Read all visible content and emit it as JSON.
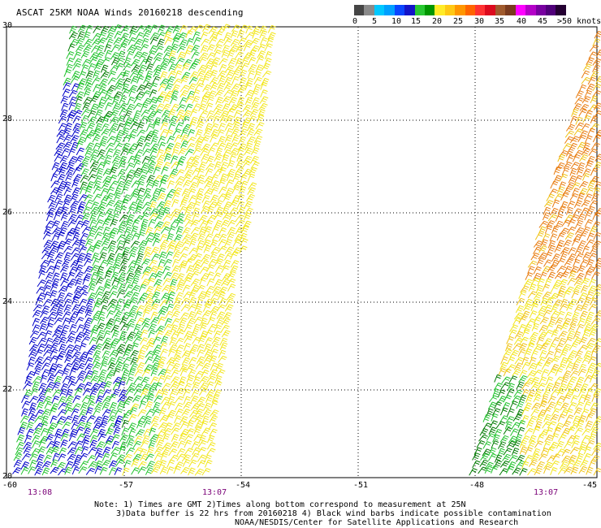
{
  "title": "ASCAT 25KM NOAA Winds 20160218 descending",
  "legend": {
    "colors": [
      "#454545",
      "#8a8a8a",
      "#00c8ff",
      "#00a0ff",
      "#0a46ff",
      "#1414c8",
      "#28c832",
      "#009600",
      "#ffeb28",
      "#ffc814",
      "#ff9600",
      "#ff6400",
      "#ff3232",
      "#dc0a1e",
      "#a05a2d",
      "#7a3a1e",
      "#ff00ff",
      "#b400c8",
      "#7800a0",
      "#50007a",
      "#240032"
    ],
    "labels": [
      "0",
      "5",
      "10",
      "15",
      "20",
      "25",
      "30",
      "35",
      "40",
      "45",
      ">50 knots"
    ]
  },
  "lat_labels": [
    "30",
    "28",
    "26",
    "24",
    "22",
    "20"
  ],
  "lon_labels": [
    "-60",
    "-57",
    "-54",
    "-51",
    "-48",
    "-45"
  ],
  "time_labels": [
    "13:08",
    "13:07",
    "13:07"
  ],
  "notes": [
    "Note: 1) Times are GMT 2)Times along bottom correspond to measurement at 25N",
    "3)Data buffer is 22 hrs from 20160218 4) Black wind barbs indicate possible contamination",
    "NOAA/NESDIS/Center for Satellite Applications and Research"
  ],
  "swath_colors": {
    "blue": "#0000c8",
    "green": "#22c32e",
    "dark_green": "#007a00",
    "yellow": "#f2e61c",
    "gold": "#f0c419",
    "orange": "#e87c10"
  }
}
